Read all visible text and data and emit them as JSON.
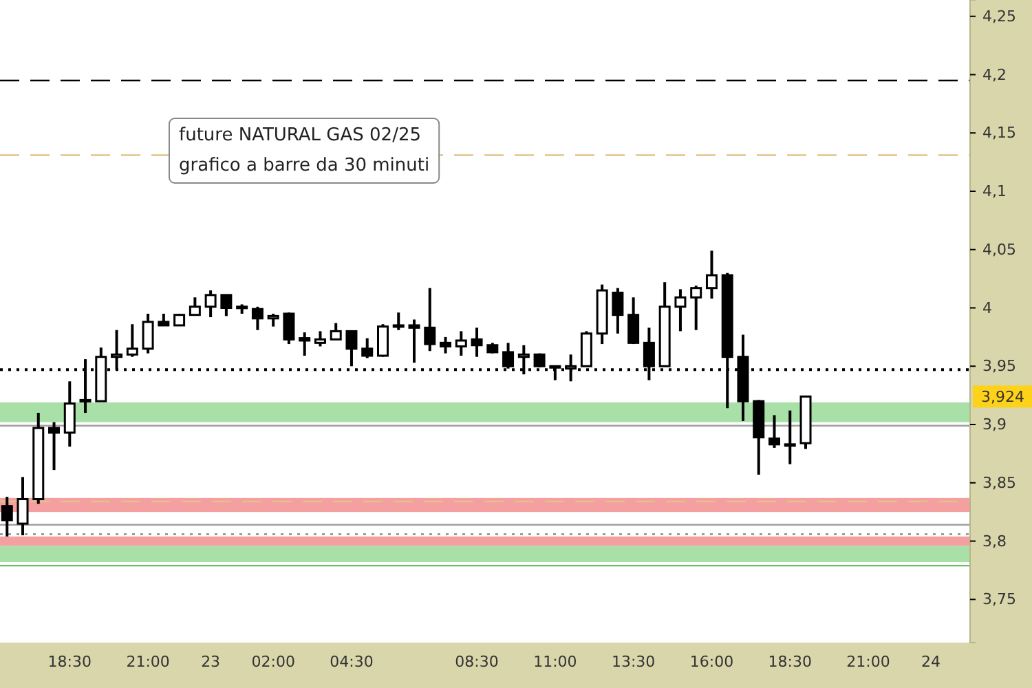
{
  "chart_data": {
    "type": "candlestick",
    "title": "future NATURAL GAS 02/25",
    "subtitle": "grafico a barre da 30 minuti",
    "categories": [
      null,
      null,
      null,
      null,
      "18:30",
      null,
      null,
      null,
      null,
      "21:00",
      null,
      null,
      null,
      "23",
      null,
      null,
      null,
      "02:00",
      null,
      null,
      null,
      null,
      "04:30",
      null,
      null,
      null,
      null,
      null,
      null,
      null,
      "08:30",
      null,
      null,
      null,
      null,
      "11:00",
      null,
      null,
      null,
      null,
      "13:30",
      null,
      null,
      null,
      null,
      "16:00",
      null,
      null,
      null,
      null,
      "18:30",
      null,
      null,
      null,
      null,
      "21:00",
      null,
      null,
      null,
      "24",
      null,
      null
    ],
    "ohlc": [
      [
        3.83,
        3.838,
        3.804,
        3.818
      ],
      [
        3.815,
        3.855,
        3.805,
        3.836
      ],
      [
        3.836,
        3.91,
        3.832,
        3.897
      ],
      [
        3.897,
        3.902,
        3.861,
        3.893
      ],
      [
        3.893,
        3.937,
        3.881,
        3.918
      ],
      [
        3.92,
        3.956,
        3.91,
        3.921
      ],
      [
        3.92,
        3.966,
        3.92,
        3.958
      ],
      [
        3.958,
        3.981,
        3.947,
        3.96
      ],
      [
        3.96,
        3.986,
        3.958,
        3.965
      ],
      [
        3.965,
        3.995,
        3.961,
        3.988
      ],
      [
        3.988,
        3.995,
        3.985,
        3.985
      ],
      [
        3.985,
        3.995,
        3.985,
        3.994
      ],
      [
        3.994,
        4.009,
        3.994,
        4.001
      ],
      [
        4.001,
        4.015,
        3.992,
        4.011
      ],
      [
        4.011,
        4.011,
        3.993,
        4.0
      ],
      [
        4.001,
        4.003,
        3.995,
        4.0
      ],
      [
        3.999,
        4.001,
        3.981,
        3.991
      ],
      [
        3.991,
        3.995,
        3.984,
        3.993
      ],
      [
        3.995,
        3.996,
        3.969,
        3.973
      ],
      [
        3.974,
        3.979,
        3.959,
        3.972
      ],
      [
        3.97,
        3.98,
        3.967,
        3.973
      ],
      [
        3.973,
        3.987,
        3.973,
        3.98
      ],
      [
        3.98,
        3.98,
        3.95,
        3.965
      ],
      [
        3.965,
        3.974,
        3.957,
        3.959
      ],
      [
        3.959,
        3.986,
        3.958,
        3.984
      ],
      [
        3.984,
        3.996,
        3.981,
        3.985
      ],
      [
        3.985,
        3.99,
        3.953,
        3.983
      ],
      [
        3.983,
        4.017,
        3.963,
        3.969
      ],
      [
        3.97,
        3.975,
        3.961,
        3.967
      ],
      [
        3.967,
        3.98,
        3.959,
        3.972
      ],
      [
        3.973,
        3.983,
        3.958,
        3.968
      ],
      [
        3.968,
        3.97,
        3.961,
        3.962
      ],
      [
        3.962,
        3.97,
        3.948,
        3.95
      ],
      [
        3.958,
        3.968,
        3.943,
        3.96
      ],
      [
        3.96,
        3.961,
        3.949,
        3.95
      ],
      [
        3.95,
        3.95,
        3.938,
        3.95
      ],
      [
        3.948,
        3.96,
        3.937,
        3.95
      ],
      [
        3.95,
        3.98,
        3.95,
        3.978
      ],
      [
        3.978,
        4.02,
        3.969,
        4.015
      ],
      [
        4.013,
        4.017,
        3.978,
        3.994
      ],
      [
        3.994,
        4.009,
        3.969,
        3.97
      ],
      [
        3.97,
        3.983,
        3.938,
        3.95
      ],
      [
        3.95,
        4.022,
        3.95,
        4.001
      ],
      [
        4.001,
        4.016,
        3.98,
        4.009
      ],
      [
        4.009,
        4.019,
        3.981,
        4.017
      ],
      [
        4.017,
        4.049,
        4.008,
        4.028
      ],
      [
        4.028,
        4.03,
        3.914,
        3.958
      ],
      [
        3.958,
        3.977,
        3.903,
        3.92
      ],
      [
        3.92,
        3.921,
        3.857,
        3.889
      ],
      [
        3.888,
        3.908,
        3.88,
        3.883
      ],
      [
        3.883,
        3.912,
        3.866,
        3.883
      ],
      [
        3.884,
        3.924,
        3.879,
        3.924
      ],
      null,
      null,
      null,
      null,
      null,
      null,
      null,
      null,
      null,
      null
    ],
    "ylim": [
      3.713,
      4.264
    ],
    "yticks": [
      {
        "value": 3.75,
        "label": "3,75"
      },
      {
        "value": 3.8,
        "label": "3,8"
      },
      {
        "value": 3.85,
        "label": "3,85"
      },
      {
        "value": 3.9,
        "label": "3,9"
      },
      {
        "value": 3.95,
        "label": "3,95"
      },
      {
        "value": 4,
        "label": "4"
      },
      {
        "value": 4.05,
        "label": "4,05"
      },
      {
        "value": 4.1,
        "label": "4,1"
      },
      {
        "value": 4.15,
        "label": "4,15"
      },
      {
        "value": 4.2,
        "label": "4,2"
      },
      {
        "value": 4.25,
        "label": "4,25"
      }
    ],
    "bands": [
      {
        "axis": "y",
        "from": 3.825,
        "to": 3.837,
        "color": "#f4a0a0"
      },
      {
        "axis": "y",
        "from": 3.796,
        "to": 3.804,
        "color": "#f4a0a0"
      },
      {
        "axis": "y",
        "from": 3.902,
        "to": 3.919,
        "color": "#a8e0a8"
      },
      {
        "axis": "y",
        "from": 3.782,
        "to": 3.796,
        "color": "#a8e0a8"
      }
    ],
    "ref_lines": [
      {
        "axis": "y",
        "value": 4.195,
        "color": "#000000",
        "line_style": "dashed"
      },
      {
        "axis": "y",
        "value": 3.947,
        "color": "#000000",
        "line_style": "dotted"
      },
      {
        "axis": "y",
        "value": 4.131,
        "color": "#e0c48a",
        "line_style": "dashed"
      },
      {
        "axis": "y",
        "value": 3.834,
        "color": "#e0c48a",
        "line_style": "dashed"
      },
      {
        "axis": "y",
        "value": 3.814,
        "color": "#a0a0a0",
        "line_style": "solid"
      },
      {
        "axis": "y",
        "value": 3.806,
        "color": "#808080",
        "line_style": "dotted"
      },
      {
        "axis": "y",
        "value": 3.899,
        "color": "#a0a0a0",
        "line_style": "solid"
      },
      {
        "axis": "y",
        "value": 3.779,
        "color": "#60c060",
        "line_style": "solid"
      }
    ],
    "annotations": [
      {
        "text": "3,924",
        "y": 3.924
      }
    ],
    "color": "#000000",
    "grid": false
  }
}
